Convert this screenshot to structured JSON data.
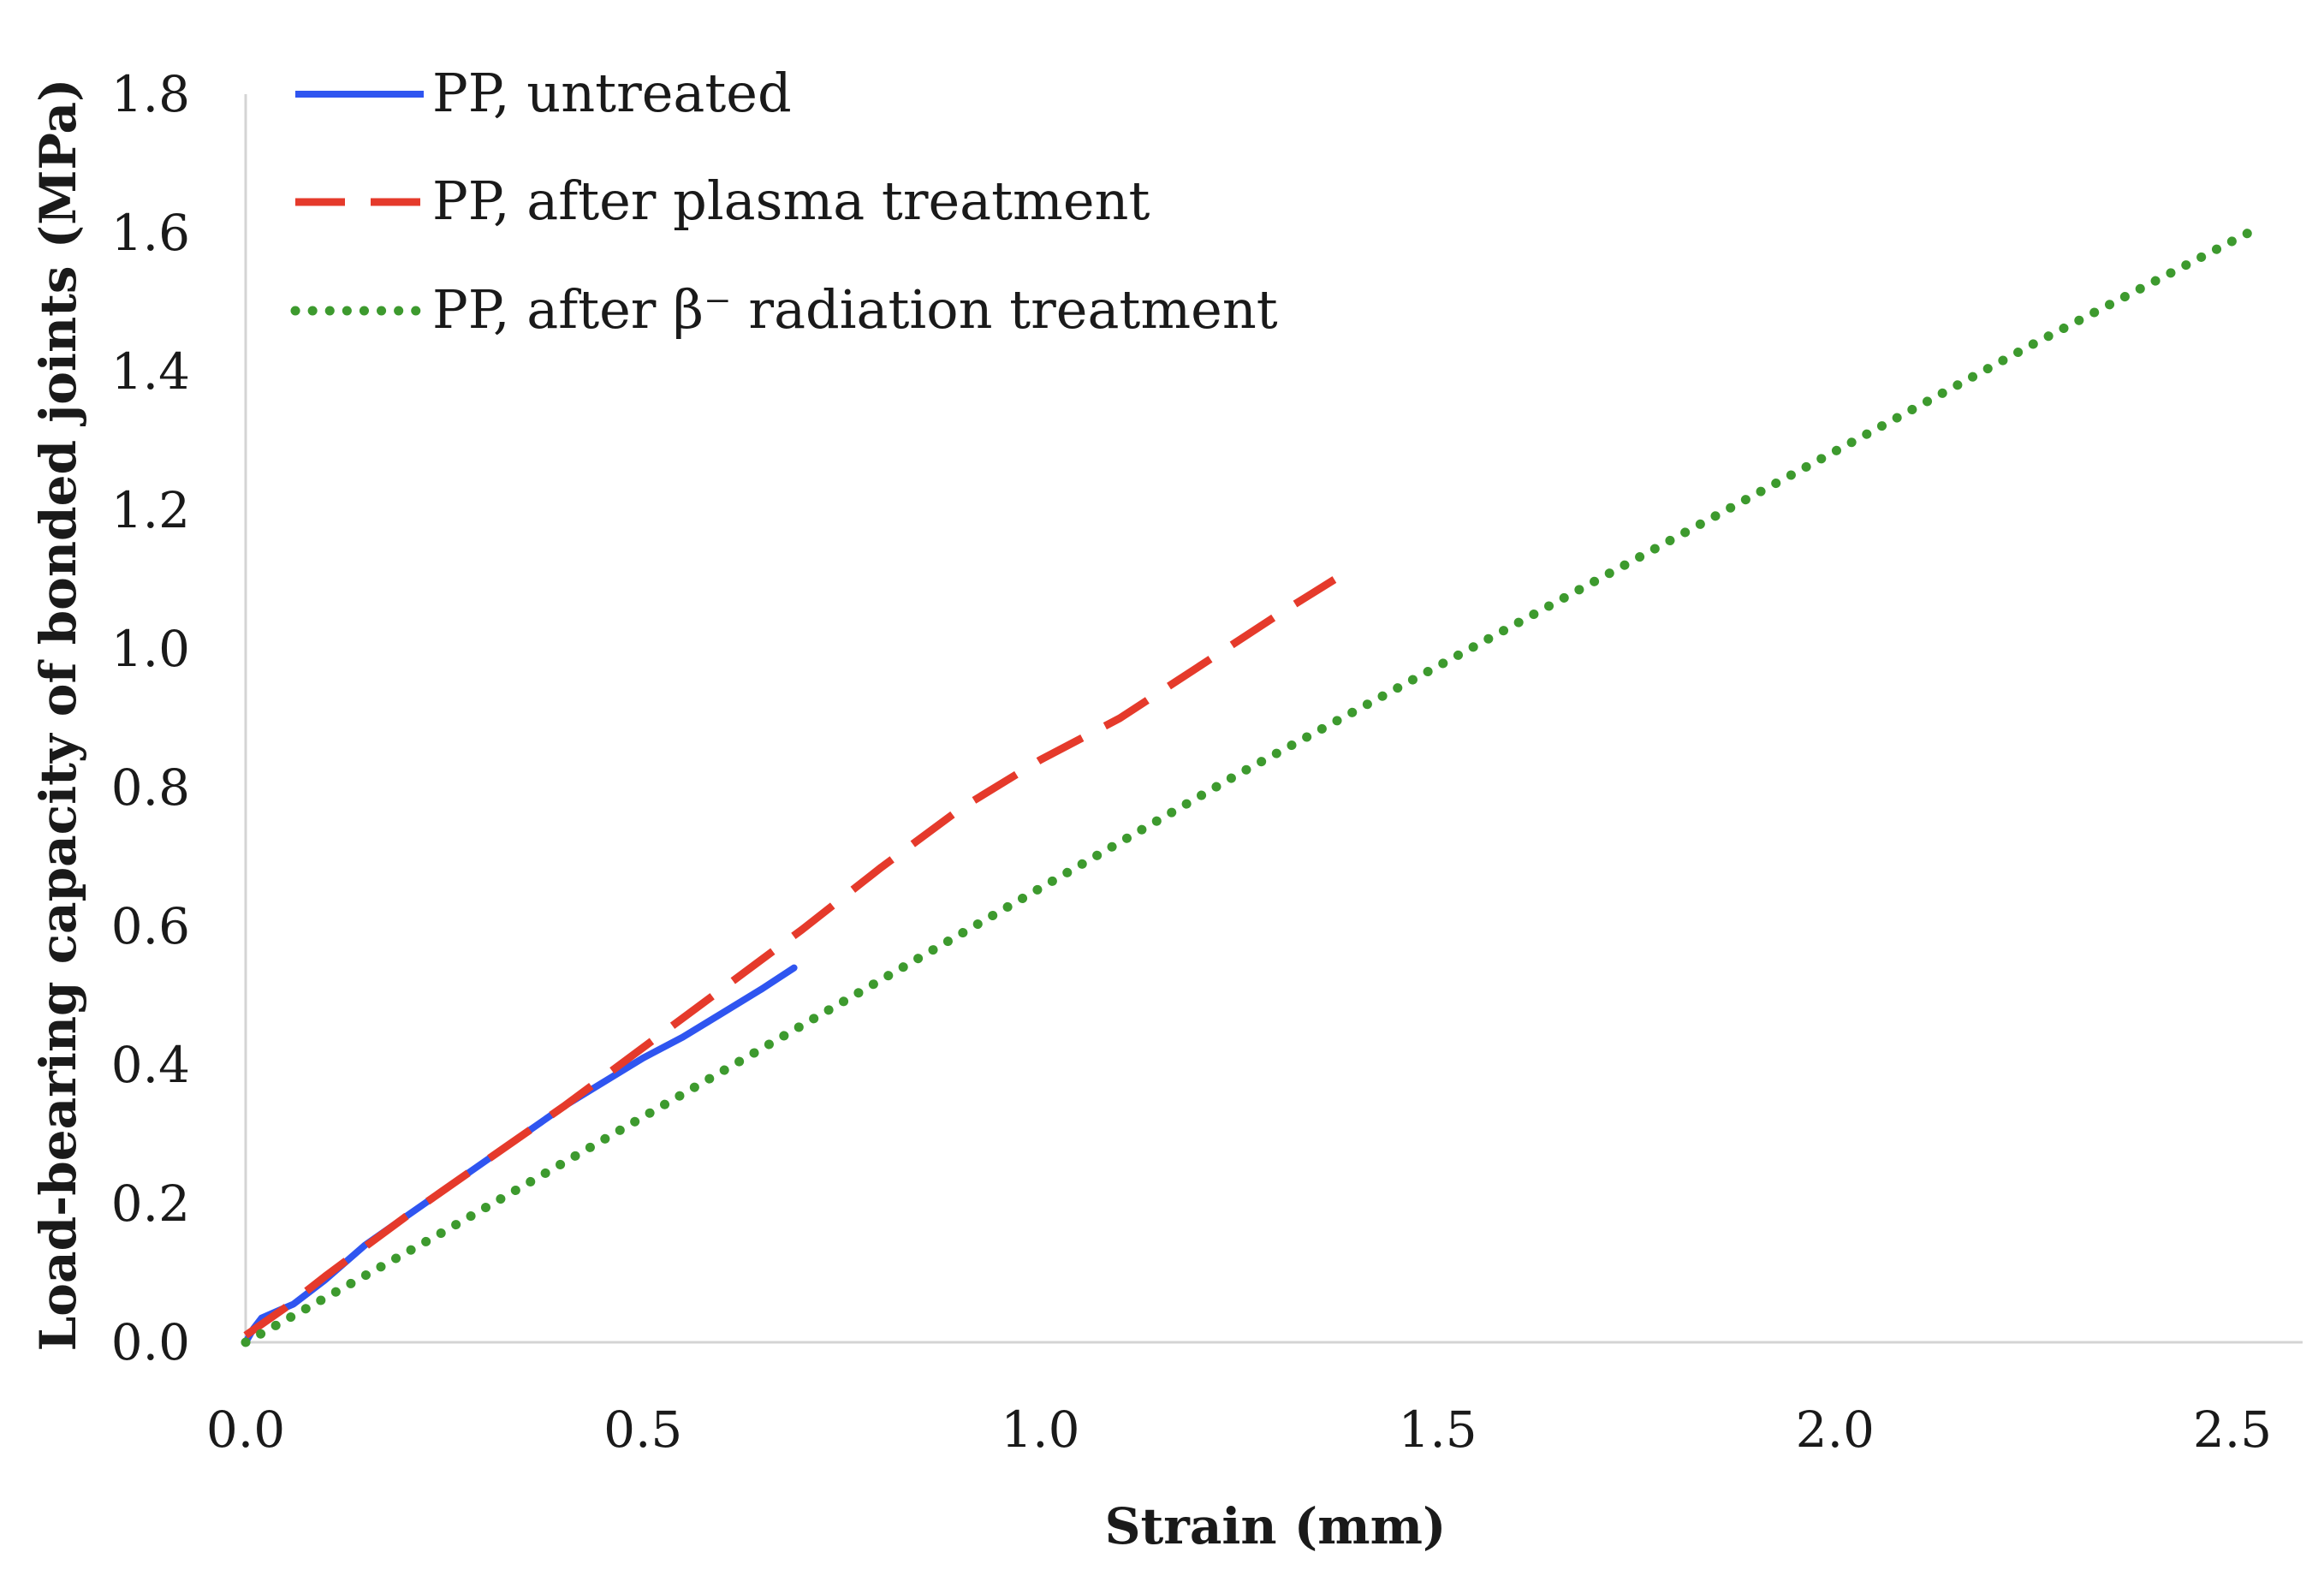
{
  "chart_data": {
    "type": "line",
    "title": "",
    "xlabel": "Strain (mm)",
    "ylabel": "Load-bearing capacity of bonded joints (MPa)",
    "xlim": [
      0,
      2.55
    ],
    "ylim": [
      0,
      1.8
    ],
    "x_ticks": [
      "0.0",
      "0.5",
      "1.0",
      "1.5",
      "2.0",
      "2.5"
    ],
    "y_ticks": [
      "0.0",
      "0.2",
      "0.4",
      "0.6",
      "0.8",
      "1.0",
      "1.2",
      "1.4",
      "1.6",
      "1.8"
    ],
    "grid": false,
    "legend_position": "top-left",
    "series": [
      {
        "name": "PP, untreated",
        "style": "solid",
        "color": "#2f55f0",
        "x": [
          0,
          0.01,
          0.02,
          0.04,
          0.06,
          0.1,
          0.15,
          0.2,
          0.3,
          0.4,
          0.5,
          0.55,
          0.6,
          0.65,
          0.69
        ],
        "y": [
          0,
          0.02,
          0.035,
          0.045,
          0.055,
          0.09,
          0.14,
          0.18,
          0.26,
          0.34,
          0.41,
          0.44,
          0.475,
          0.51,
          0.54
        ]
      },
      {
        "name": "PP, after plasma treatment",
        "style": "dashed",
        "color": "#e53a2b",
        "x": [
          0,
          0.05,
          0.1,
          0.2,
          0.3,
          0.4,
          0.5,
          0.6,
          0.7,
          0.8,
          0.9,
          1.0,
          1.1,
          1.2,
          1.3,
          1.37
        ],
        "y": [
          0.01,
          0.05,
          0.095,
          0.18,
          0.26,
          0.34,
          0.425,
          0.51,
          0.595,
          0.685,
          0.77,
          0.84,
          0.9,
          0.975,
          1.05,
          1.1
        ]
      },
      {
        "name": "PP, after β⁻ radiation treatment",
        "style": "dotted",
        "color": "#3d9a2e",
        "x": [
          0,
          0.25,
          0.5,
          0.75,
          1.0,
          1.25,
          1.5,
          1.75,
          2.0,
          2.25,
          2.52
        ],
        "y": [
          0,
          0.16,
          0.325,
          0.49,
          0.655,
          0.82,
          0.975,
          1.13,
          1.285,
          1.44,
          1.6
        ]
      }
    ]
  }
}
